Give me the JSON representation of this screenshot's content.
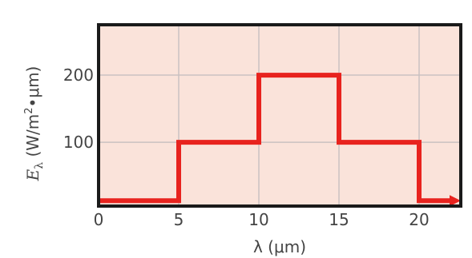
{
  "chart_data": {
    "type": "line",
    "subtype": "step",
    "x": [
      0,
      5,
      5,
      10,
      10,
      15,
      15,
      20,
      20,
      22.6
    ],
    "y": [
      13,
      13,
      100,
      100,
      200,
      200,
      100,
      100,
      13,
      13
    ],
    "series": [
      {
        "name": "",
        "color": "#e8231e",
        "continues_right": true
      }
    ],
    "xlim": [
      0,
      22.6
    ],
    "ylim": [
      5,
      275
    ],
    "xticks": [
      0,
      5,
      10,
      15,
      20
    ],
    "xtick_labels": [
      "0",
      "5",
      "10",
      "15",
      "20"
    ],
    "yticks": [
      100,
      200
    ],
    "ytick_labels": [
      "100",
      "200"
    ],
    "xlabel": "λ (μm)",
    "ylabel": "Eλ (W/m²•μm)",
    "grid": true,
    "background": "#fae3da",
    "grid_color": "#c9c1c1",
    "frame_color": "#1a1a1a"
  }
}
